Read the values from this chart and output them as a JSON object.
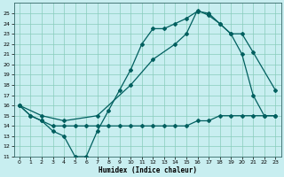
{
  "xlabel": "Humidex (Indice chaleur)",
  "bg_color": "#c8eef0",
  "grid_color": "#88ccbb",
  "line_color": "#005f5f",
  "xlim": [
    -0.5,
    23.5
  ],
  "ylim": [
    11,
    26
  ],
  "xticks": [
    0,
    1,
    2,
    3,
    4,
    5,
    6,
    7,
    8,
    9,
    10,
    11,
    12,
    13,
    14,
    15,
    16,
    17,
    18,
    19,
    20,
    21,
    22,
    23
  ],
  "yticks": [
    11,
    12,
    13,
    14,
    15,
    16,
    17,
    18,
    19,
    20,
    21,
    22,
    23,
    24,
    25
  ],
  "line1_x": [
    0,
    1,
    2,
    3,
    4,
    5,
    6,
    7,
    8,
    9,
    10,
    11,
    12,
    13,
    14,
    15,
    16,
    17,
    18,
    19,
    20,
    21,
    22,
    23
  ],
  "line1_y": [
    16,
    15,
    14.5,
    13.5,
    13,
    11,
    11,
    13.5,
    15.5,
    17.5,
    19.5,
    22,
    23.5,
    23.5,
    24,
    24.5,
    25.2,
    25,
    24,
    23,
    21,
    17,
    15,
    15
  ],
  "line2_x": [
    0,
    1,
    2,
    3,
    4,
    5,
    6,
    7,
    8,
    9,
    10,
    11,
    12,
    13,
    14,
    15,
    16,
    17,
    18,
    19,
    20,
    21,
    22,
    23
  ],
  "line2_y": [
    16,
    15,
    14.5,
    14,
    14,
    14,
    14,
    14,
    14,
    14,
    14,
    14,
    14,
    14,
    14,
    14,
    14.5,
    14.5,
    15,
    15,
    15,
    15,
    15,
    15
  ],
  "line3_x": [
    0,
    2,
    4,
    7,
    10,
    12,
    14,
    15,
    16,
    17,
    18,
    19,
    20,
    21,
    23
  ],
  "line3_y": [
    16,
    15,
    14.5,
    15,
    18,
    20.5,
    22,
    23,
    25.3,
    24.8,
    24,
    23,
    23,
    21.2,
    17.5
  ]
}
